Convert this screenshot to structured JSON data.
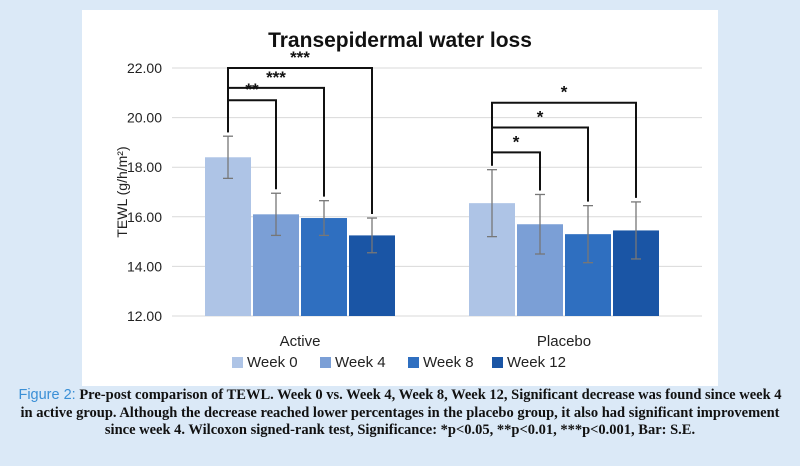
{
  "chart_data": {
    "type": "bar",
    "title": "Transepidermal water loss",
    "ylabel": "TEWL (g/h/m²)",
    "xlabel": "",
    "ylim": [
      12,
      22
    ],
    "yticks": [
      "12.00",
      "14.00",
      "16.00",
      "18.00",
      "20.00",
      "22.00"
    ],
    "grid": true,
    "legend_position": "bottom",
    "categories": [
      "Active",
      "Placebo"
    ],
    "series": [
      {
        "name": "Week 0",
        "color": "#aec4e6",
        "values": [
          18.4,
          16.55
        ],
        "error": [
          0.85,
          1.35
        ]
      },
      {
        "name": "Week 4",
        "color": "#7b9fd6",
        "values": [
          16.1,
          15.7
        ],
        "error": [
          0.85,
          1.2
        ]
      },
      {
        "name": "Week 8",
        "color": "#2f6fc0",
        "values": [
          15.95,
          15.3
        ],
        "error": [
          0.7,
          1.15
        ]
      },
      {
        "name": "Week 12",
        "color": "#1a55a5",
        "values": [
          15.25,
          15.45
        ],
        "error": [
          0.7,
          1.15
        ]
      }
    ],
    "significance": [
      {
        "group": 0,
        "from": 0,
        "to": 1,
        "label": "**",
        "y": 20.7
      },
      {
        "group": 0,
        "from": 0,
        "to": 2,
        "label": "***",
        "y": 21.2
      },
      {
        "group": 0,
        "from": 0,
        "to": 3,
        "label": "***",
        "y": 22.0
      },
      {
        "group": 1,
        "from": 0,
        "to": 1,
        "label": "*",
        "y": 18.6
      },
      {
        "group": 1,
        "from": 0,
        "to": 2,
        "label": "*",
        "y": 19.6
      },
      {
        "group": 1,
        "from": 0,
        "to": 3,
        "label": "*",
        "y": 20.6
      }
    ]
  },
  "caption": {
    "label": "Figure 2:",
    "text": " Pre-post comparison of TEWL. Week 0 vs. Week 4, Week 8, Week 12, Significant decrease was found since week 4 in active group. Although the decrease reached lower percentages in the placebo group, it also had significant improvement since week 4. Wilcoxon signed-rank test, Significance: *p<0.05, **p<0.01, ***p<0.001, Bar: S.E."
  }
}
